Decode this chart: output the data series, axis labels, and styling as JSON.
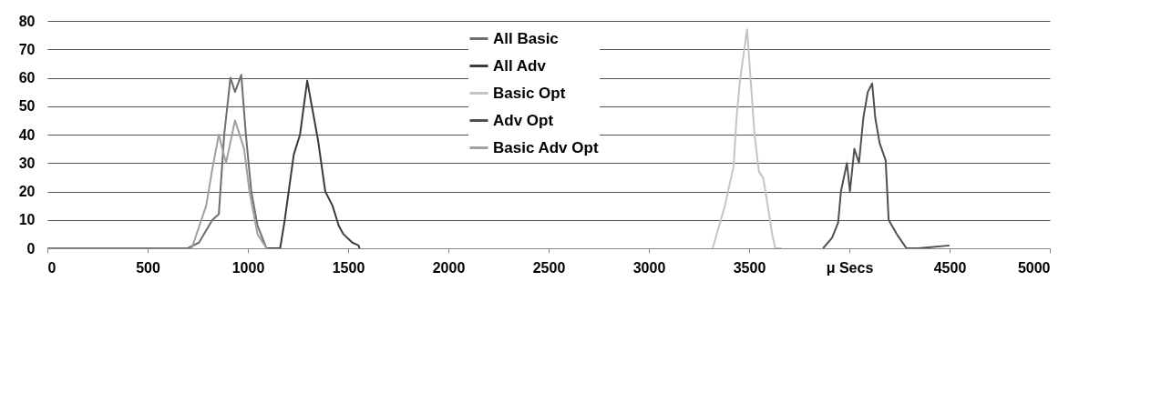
{
  "chart_data": {
    "type": "line",
    "xlim": [
      0,
      5000
    ],
    "ylim": [
      0,
      80
    ],
    "xticks": [
      0,
      500,
      1000,
      1500,
      2000,
      2500,
      3000,
      3500,
      {
        "value": 4000,
        "label": "μ Secs"
      },
      4500,
      5000
    ],
    "yticks": [
      0,
      10,
      20,
      30,
      40,
      50,
      60,
      70,
      80
    ],
    "grid": "y",
    "legend": "top",
    "marker": "none",
    "line_style": "solid",
    "series": [
      {
        "name": "All Basic",
        "color": "#6e6e6e",
        "x": [
          0,
          700,
          756,
          823,
          855,
          882,
          913,
          936,
          967,
          990,
          1017,
          1048,
          1093,
          1161
        ],
        "values": [
          0,
          0,
          2,
          10,
          12,
          40,
          60,
          55,
          61,
          40,
          20,
          8,
          0,
          0
        ]
      },
      {
        "name": "All Adv",
        "color": "#3c3c3c",
        "x": [
          1098,
          1161,
          1184,
          1229,
          1260,
          1296,
          1319,
          1350,
          1386,
          1422,
          1453,
          1476,
          1521,
          1552,
          1557
        ],
        "values": [
          0,
          0,
          10,
          33,
          40,
          59,
          50,
          38,
          20,
          15,
          8,
          5,
          2,
          1,
          0
        ]
      },
      {
        "name": "Basic Opt",
        "color": "#c4c4c4",
        "x": [
          3318,
          3378,
          3423,
          3437,
          3453,
          3468,
          3490,
          3527,
          3549,
          3571,
          3586,
          3616,
          3631,
          3661
        ],
        "values": [
          0,
          14.6,
          29,
          45.6,
          58,
          66,
          77,
          40,
          27,
          24.6,
          18,
          4.6,
          0,
          0
        ]
      },
      {
        "name": "Adv Opt",
        "color": "#505050",
        "x": [
          3869,
          3914,
          3944,
          3958,
          3988,
          4003,
          4025,
          4048,
          4070,
          4092,
          4114,
          4129,
          4151,
          4181,
          4196,
          4240,
          4285,
          4345,
          4500
        ],
        "values": [
          0,
          3.7,
          9,
          20,
          30,
          20,
          35,
          30,
          46,
          55,
          58,
          46,
          37,
          31,
          10,
          4.6,
          0,
          0,
          1
        ]
      },
      {
        "name": "Basic Adv Opt",
        "color": "#a0a0a0",
        "x": [
          720,
          792,
          823,
          855,
          891,
          936,
          981,
          1008,
          1048,
          1093
        ],
        "values": [
          0,
          15,
          28,
          40,
          30,
          45,
          35,
          20,
          5,
          0
        ]
      }
    ]
  }
}
